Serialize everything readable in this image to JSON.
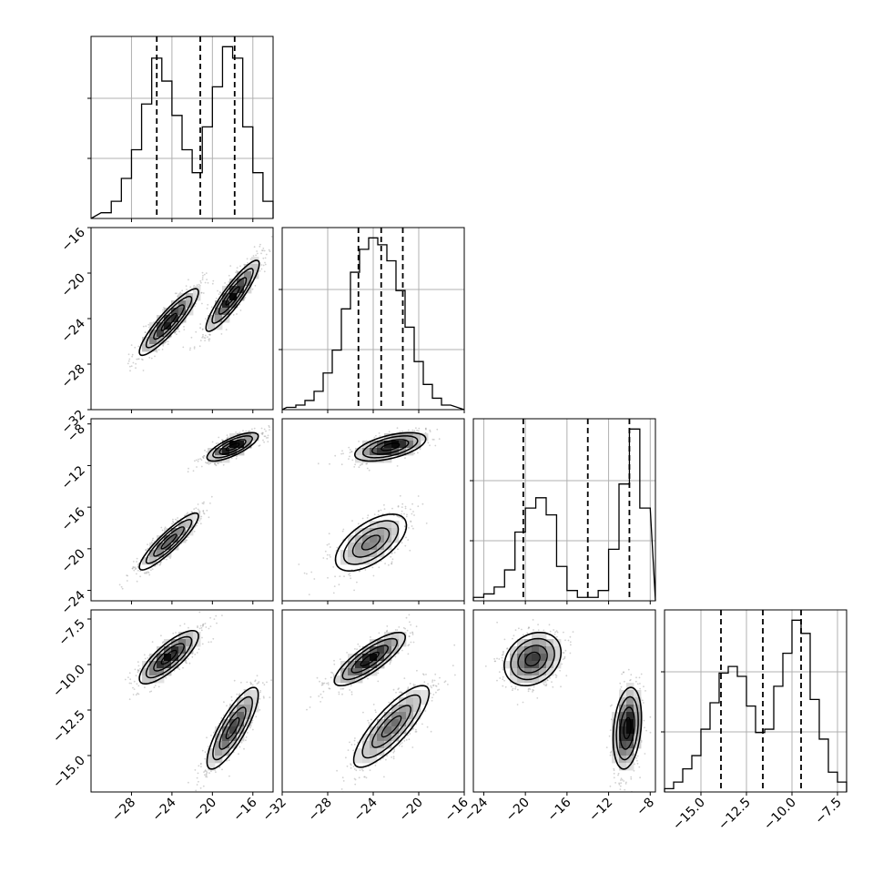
{
  "chart_data": {
    "type": "corner",
    "grid": true,
    "colors": {
      "line": "#000000",
      "grid": "#b0b0b0",
      "points": "#9a9a9a"
    },
    "parameters": [
      {
        "range": [
          -32,
          -14
        ],
        "ticks": [
          -28,
          -24,
          -20,
          -16
        ],
        "tick_labels": [
          "−28",
          "−24",
          "−20",
          "−16"
        ],
        "quantiles": [
          -25.5,
          -21.2,
          -17.8
        ],
        "histogram": {
          "edges": [
            -31,
            -30,
            -29,
            -28,
            -27,
            -26,
            -25,
            -24,
            -23,
            -22,
            -21,
            -20,
            -19,
            -18,
            -17,
            -16,
            -15,
            -14
          ],
          "counts": [
            1,
            3,
            7,
            12,
            20,
            28,
            24,
            18,
            12,
            8,
            16,
            23,
            30,
            28,
            16,
            8,
            3
          ]
        }
      },
      {
        "range": [
          -32,
          -16
        ],
        "ticks": [
          -32,
          -28,
          -24,
          -20,
          -16
        ],
        "tick_labels": [
          "−32",
          "−28",
          "−24",
          "−20",
          "−16"
        ],
        "quantiles": [
          -25.3,
          -23.3,
          -21.4
        ],
        "histogram": {
          "edges": [
            -31.6,
            -30.8,
            -30,
            -29.2,
            -28.4,
            -27.6,
            -26.8,
            -26,
            -25.2,
            -24.4,
            -23.6,
            -22.8,
            -22,
            -21.2,
            -20.4,
            -19.6,
            -18.8,
            -18,
            -17.2
          ],
          "counts": [
            1,
            2,
            4,
            8,
            16,
            26,
            44,
            60,
            70,
            75,
            72,
            65,
            52,
            36,
            21,
            11,
            5,
            2
          ]
        }
      },
      {
        "range": [
          -25,
          -7.5
        ],
        "ticks": [
          -24,
          -20,
          -16,
          -12,
          -8
        ],
        "tick_labels": [
          "−24",
          "−20",
          "−16",
          "−12",
          "−8"
        ],
        "quantiles": [
          -20.2,
          -14.0,
          -10.0
        ],
        "histogram": {
          "edges": [
            -25,
            -24,
            -23,
            -22,
            -21,
            -20,
            -19,
            -18,
            -17,
            -16,
            -15,
            -14,
            -13,
            -12,
            -11,
            -10,
            -9,
            -8
          ],
          "counts": [
            1,
            2,
            4,
            9,
            20,
            27,
            30,
            25,
            10,
            3,
            1,
            1,
            3,
            15,
            34,
            50,
            27
          ]
        }
      },
      {
        "range": [
          -17,
          -7
        ],
        "ticks": [
          -15,
          -12.5,
          -10,
          -7.5
        ],
        "tick_labels": [
          "−15.0",
          "−12.5",
          "−10.0",
          "−7.5"
        ],
        "quantiles": [
          -13.9,
          -11.6,
          -9.5
        ],
        "histogram": {
          "edges": [
            -17,
            -16.5,
            -16,
            -15.5,
            -15,
            -14.5,
            -14,
            -13.5,
            -13,
            -12.5,
            -12,
            -11.5,
            -11,
            -10.5,
            -10,
            -9.5,
            -9,
            -8.5,
            -8,
            -7.5,
            -7
          ],
          "counts": [
            1,
            3,
            7,
            11,
            19,
            27,
            36,
            38,
            35,
            26,
            18,
            19,
            32,
            42,
            52,
            48,
            28,
            16,
            6,
            3
          ]
        }
      }
    ],
    "pairs": [
      {
        "row": 1,
        "col": 0,
        "modes": [
          {
            "center": [
              -24.3,
              -24.3
            ],
            "sd": [
              1.5,
              1.5
            ],
            "rho": 0.9,
            "weight": 0.5
          },
          {
            "center": [
              -18.0,
              -22.0
            ],
            "sd": [
              1.35,
              1.6
            ],
            "rho": 0.9,
            "weight": 0.5
          }
        ]
      },
      {
        "row": 2,
        "col": 0,
        "modes": [
          {
            "center": [
              -24.3,
              -19.3
            ],
            "sd": [
              1.5,
              1.4
            ],
            "rho": 0.9,
            "weight": 0.5
          },
          {
            "center": [
              -18.0,
              -10.2
            ],
            "sd": [
              1.3,
              0.7
            ],
            "rho": 0.75,
            "weight": 0.5
          }
        ]
      },
      {
        "row": 2,
        "col": 1,
        "modes": [
          {
            "center": [
              -24.2,
              -19.4
            ],
            "sd": [
              1.6,
              1.4
            ],
            "rho": 0.6,
            "weight": 0.5
          },
          {
            "center": [
              -22.5,
              -10.2
            ],
            "sd": [
              1.6,
              0.7
            ],
            "rho": 0.55,
            "weight": 0.5
          }
        ]
      },
      {
        "row": 3,
        "col": 0,
        "modes": [
          {
            "center": [
              -24.3,
              -9.6
            ],
            "sd": [
              1.5,
              0.75
            ],
            "rho": 0.8,
            "weight": 0.5
          },
          {
            "center": [
              -18.0,
              -13.5
            ],
            "sd": [
              1.3,
              1.15
            ],
            "rho": 0.82,
            "weight": 0.5
          }
        ]
      },
      {
        "row": 3,
        "col": 1,
        "modes": [
          {
            "center": [
              -24.3,
              -9.7
            ],
            "sd": [
              1.6,
              0.75
            ],
            "rho": 0.82,
            "weight": 0.5
          },
          {
            "center": [
              -22.4,
              -13.4
            ],
            "sd": [
              1.7,
              1.15
            ],
            "rho": 0.82,
            "weight": 0.5
          }
        ]
      },
      {
        "row": 3,
        "col": 2,
        "modes": [
          {
            "center": [
              -19.3,
              -9.7
            ],
            "sd": [
              1.4,
              0.75
            ],
            "rho": 0.25,
            "weight": 0.5
          },
          {
            "center": [
              -10.2,
              -13.5
            ],
            "sd": [
              0.7,
              1.15
            ],
            "rho": 0.25,
            "weight": 0.5
          }
        ]
      }
    ]
  }
}
